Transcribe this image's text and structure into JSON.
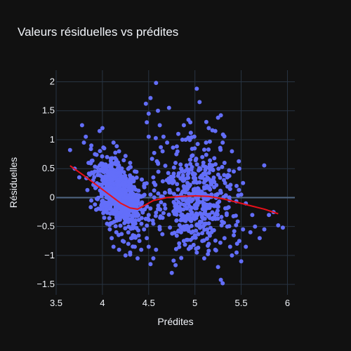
{
  "chart_data": {
    "type": "scatter",
    "title": "Valeurs résiduelles vs prédites",
    "xlabel": "Prédites",
    "ylabel": "Résiduelles",
    "xlim": [
      3.5,
      6.08
    ],
    "ylim": [
      -1.68,
      2.2
    ],
    "x_ticks": [
      3.5,
      4,
      4.5,
      5,
      5.5,
      6
    ],
    "x_tick_labels": [
      "3.5",
      "4",
      "4.5",
      "5",
      "5.5",
      "6"
    ],
    "y_ticks": [
      -1.5,
      -1,
      -0.5,
      0,
      0.5,
      1,
      1.5,
      2
    ],
    "y_tick_labels": [
      "−1.5",
      "−1",
      "−0.5",
      "0",
      "0.5",
      "1",
      "1.5",
      "2"
    ],
    "grid": true,
    "legend": "none",
    "colors": {
      "background": "#111111",
      "grid": "#283442",
      "zeroline": "#506784",
      "points": "#636efa",
      "trend": "#e8101a",
      "text": "#f2f5fa"
    },
    "series": [
      {
        "kind": "points",
        "points": [
          [
            3.65,
            0.82
          ],
          [
            3.7,
            0.5
          ],
          [
            3.75,
            0.35
          ],
          [
            3.78,
            1.25
          ],
          [
            3.8,
            0.95
          ],
          [
            3.82,
            1.05
          ],
          [
            3.85,
            0.6
          ],
          [
            3.88,
            0.9
          ],
          [
            3.9,
            0.3
          ],
          [
            3.92,
            0.75
          ],
          [
            3.95,
            0.45
          ],
          [
            3.97,
            1.15
          ],
          [
            4.0,
            1.2
          ],
          [
            4.02,
            0.85
          ],
          [
            4.05,
            0.7
          ],
          [
            4.08,
            0.55
          ],
          [
            4.1,
            0.4
          ],
          [
            4.12,
            0.95
          ],
          [
            4.15,
            0.65
          ],
          [
            4.18,
            0.8
          ],
          [
            4.2,
            0.5
          ],
          [
            4.25,
            0.72
          ],
          [
            4.3,
            0.6
          ],
          [
            4.35,
            0.45
          ],
          [
            3.88,
            -0.05
          ],
          [
            3.92,
            -0.12
          ],
          [
            3.98,
            -0.2
          ],
          [
            4.02,
            -0.35
          ],
          [
            4.05,
            -0.45
          ],
          [
            4.08,
            -0.55
          ],
          [
            4.1,
            -0.7
          ],
          [
            4.12,
            -0.85
          ],
          [
            4.15,
            -0.6
          ],
          [
            4.18,
            -0.9
          ],
          [
            4.22,
            -0.75
          ],
          [
            4.25,
            -1.0
          ],
          [
            4.28,
            -0.8
          ],
          [
            4.3,
            -0.95
          ],
          [
            4.33,
            -0.65
          ],
          [
            4.35,
            -0.85
          ],
          [
            4.38,
            -1.05
          ],
          [
            4.4,
            -0.75
          ],
          [
            4.42,
            -0.9
          ],
          [
            4.45,
            -0.55
          ],
          [
            4.48,
            -0.7
          ],
          [
            4.5,
            -0.85
          ],
          [
            4.52,
            -1.15
          ],
          [
            4.55,
            -1.05
          ],
          [
            4.58,
            -0.9
          ],
          [
            4.5,
            -0.3
          ],
          [
            4.55,
            -0.45
          ],
          [
            4.6,
            -0.2
          ],
          [
            4.62,
            -0.55
          ],
          [
            4.65,
            -0.35
          ],
          [
            4.5,
            1.05
          ],
          [
            4.48,
            1.3
          ],
          [
            4.5,
            1.45
          ],
          [
            4.47,
            1.62
          ],
          [
            4.52,
            1.72
          ],
          [
            4.58,
            1.98
          ],
          [
            4.6,
            1.5
          ],
          [
            4.62,
            1.25
          ],
          [
            4.66,
            1.05
          ],
          [
            4.7,
            0.95
          ],
          [
            4.72,
            1.55
          ],
          [
            4.45,
            0.2
          ],
          [
            4.52,
            0.05
          ],
          [
            4.55,
            0.35
          ],
          [
            4.6,
            0.6
          ],
          [
            4.65,
            0.8
          ],
          [
            4.68,
            0.55
          ],
          [
            4.72,
            0.3
          ],
          [
            4.75,
            -1.3
          ],
          [
            4.8,
            0.75
          ],
          [
            4.82,
            1.1
          ],
          [
            4.85,
            0.5
          ],
          [
            4.88,
            1.25
          ],
          [
            4.9,
            1.0
          ],
          [
            4.92,
            0.2
          ],
          [
            4.95,
            1.3
          ],
          [
            4.98,
            0.4
          ],
          [
            5.0,
            0.15
          ],
          [
            5.02,
            1.88
          ],
          [
            5.05,
            1.65
          ],
          [
            5.08,
            0.7
          ],
          [
            5.1,
            -0.1
          ],
          [
            5.12,
            0.95
          ],
          [
            5.15,
            1.2
          ],
          [
            5.18,
            0.55
          ],
          [
            5.2,
            0.3
          ],
          [
            5.22,
            1.15
          ],
          [
            5.25,
            1.38
          ],
          [
            5.28,
            1.42
          ],
          [
            5.3,
            0.95
          ],
          [
            5.32,
            0.6
          ],
          [
            5.35,
            0.35
          ],
          [
            5.38,
            0.15
          ],
          [
            5.4,
            0.8
          ],
          [
            5.42,
            0.45
          ],
          [
            5.45,
            0.2
          ],
          [
            5.48,
            0.5
          ],
          [
            5.5,
            0.05
          ],
          [
            5.52,
            0.25
          ],
          [
            5.55,
            -0.1
          ],
          [
            4.8,
            -0.4
          ],
          [
            4.85,
            -0.6
          ],
          [
            4.88,
            -0.75
          ],
          [
            4.9,
            -0.55
          ],
          [
            4.95,
            -0.85
          ],
          [
            4.98,
            -0.35
          ],
          [
            5.0,
            -0.65
          ],
          [
            5.02,
            -0.95
          ],
          [
            5.05,
            -0.5
          ],
          [
            5.08,
            -0.75
          ],
          [
            5.1,
            -1.05
          ],
          [
            5.12,
            -0.45
          ],
          [
            5.15,
            -0.8
          ],
          [
            5.18,
            -0.6
          ],
          [
            5.2,
            -0.35
          ],
          [
            5.22,
            -0.9
          ],
          [
            5.25,
            -1.2
          ],
          [
            5.28,
            -1.42
          ],
          [
            5.3,
            -1.48
          ],
          [
            5.32,
            -0.7
          ],
          [
            5.35,
            -0.5
          ],
          [
            5.38,
            -0.85
          ],
          [
            5.4,
            -1.0
          ],
          [
            5.42,
            -0.65
          ],
          [
            5.45,
            -0.95
          ],
          [
            5.48,
            -0.75
          ],
          [
            5.5,
            -1.1
          ],
          [
            5.52,
            -0.55
          ],
          [
            5.55,
            -0.85
          ],
          [
            5.6,
            -0.6
          ],
          [
            5.62,
            -0.3
          ],
          [
            5.65,
            -0.5
          ],
          [
            5.7,
            -0.7
          ],
          [
            5.75,
            -0.55
          ],
          [
            5.8,
            -0.3
          ],
          [
            5.85,
            -0.25
          ],
          [
            5.9,
            -0.48
          ],
          [
            5.95,
            -0.52
          ]
        ]
      },
      {
        "kind": "trend",
        "x": [
          3.65,
          3.8,
          3.95,
          4.1,
          4.2,
          4.3,
          4.38,
          4.45,
          4.55,
          4.7,
          4.85,
          5.0,
          5.15,
          5.3,
          5.45,
          5.6,
          5.75,
          5.9
        ],
        "y": [
          0.55,
          0.38,
          0.2,
          0.02,
          -0.1,
          -0.18,
          -0.2,
          -0.14,
          -0.05,
          0.0,
          0.02,
          0.03,
          0.02,
          -0.02,
          -0.08,
          -0.14,
          -0.2,
          -0.28
        ]
      }
    ]
  }
}
